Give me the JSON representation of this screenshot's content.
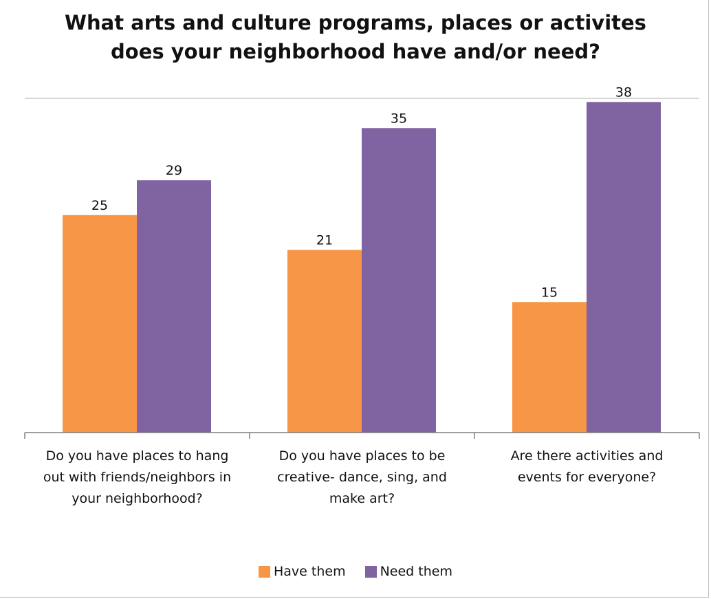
{
  "chart_data": {
    "type": "bar",
    "title": [
      "What arts and culture programs, places or activites",
      "does your neighborhood have and/or need?"
    ],
    "categories": [
      [
        "Do you have places to hang",
        "out with friends/neighbors in",
        "your neighborhood?"
      ],
      [
        "Do you have places to be",
        "creative- dance, sing, and",
        "make art?"
      ],
      [
        "Are there activities and",
        "events for everyone?"
      ]
    ],
    "series": [
      {
        "name": "Have them",
        "color": "#f79646",
        "values": [
          25,
          21,
          15
        ]
      },
      {
        "name": "Need them",
        "color": "#8064a2",
        "values": [
          29,
          35,
          38
        ]
      }
    ],
    "ylim": [
      0,
      40
    ],
    "grid": false,
    "legend_position": "bottom"
  }
}
